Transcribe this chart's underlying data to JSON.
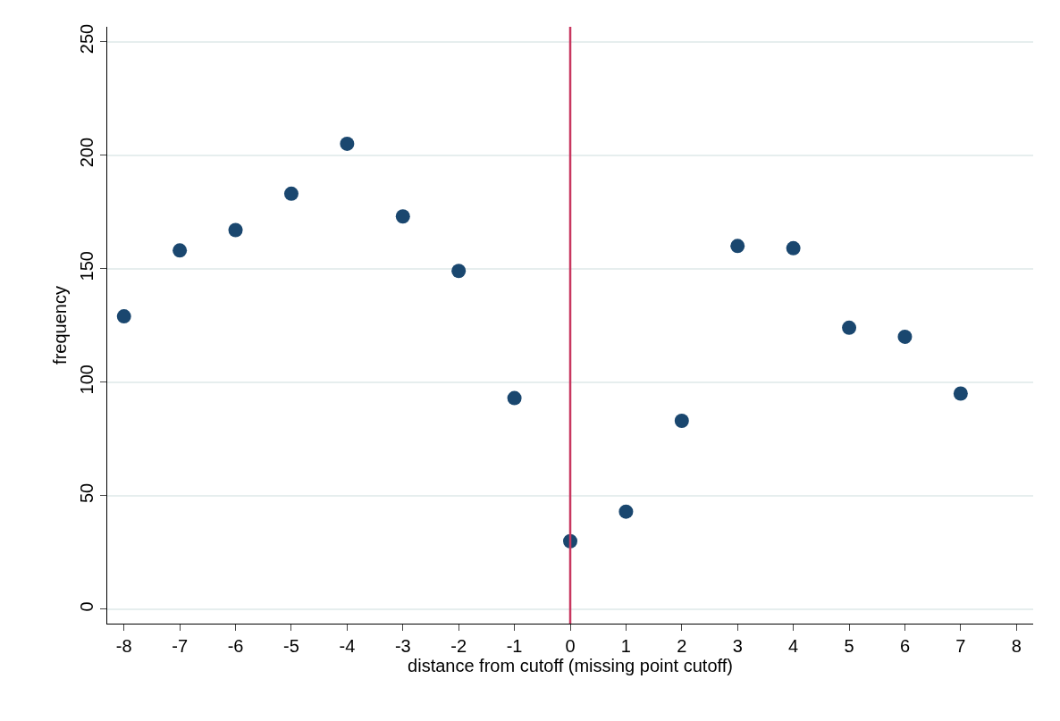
{
  "chart_data": {
    "type": "scatter",
    "xlabel": "distance from cutoff (missing point cutoff)",
    "ylabel": "frequency",
    "x": [
      -8,
      -7,
      -6,
      -5,
      -4,
      -3,
      -2,
      -1,
      0,
      1,
      2,
      3,
      4,
      5,
      6,
      7
    ],
    "series": [
      {
        "color": "#1a476f",
        "values": [
          129,
          158,
          167,
          183,
          205,
          173,
          149,
          93,
          30,
          43,
          83,
          160,
          159,
          124,
          120,
          95
        ]
      }
    ],
    "xlim": [
      -8.3,
      8.3
    ],
    "xticks": [
      -8,
      -7,
      -6,
      -5,
      -4,
      -3,
      -2,
      -1,
      0,
      1,
      2,
      3,
      4,
      5,
      6,
      7,
      8
    ],
    "ylim": [
      -6.3,
      256.5
    ],
    "yticks": [
      0,
      50,
      100,
      150,
      200,
      250
    ],
    "ref_lines": [
      {
        "axis": "x",
        "value": 0,
        "color": "#c8375f"
      }
    ],
    "grid": "y",
    "marker": "circle"
  }
}
